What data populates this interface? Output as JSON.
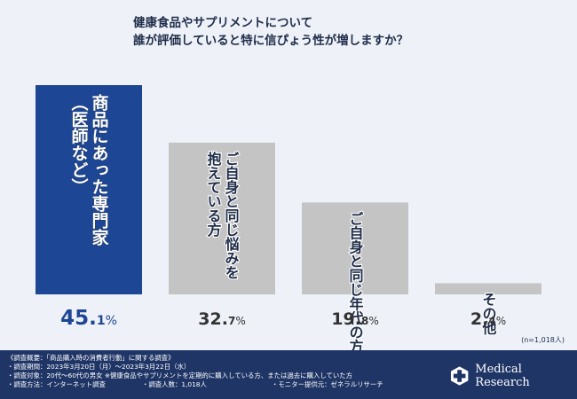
{
  "title_lines": [
    "健康食品やサプリメントについて",
    "誰が評価していると特に信ぴょう性が増しますか？"
  ],
  "colors": {
    "highlight": "#1d4694",
    "bar": "#c4c4c4",
    "footer": "#1f3566",
    "background": "#eef2f8"
  },
  "chart_data": {
    "type": "bar",
    "categories": [
      "商品にあった専門家（医師など）",
      "ご自身と同じ悩みを抱えている方",
      "ご自身と同じ年代の方",
      "その他"
    ],
    "bar_labels": [
      [
        "商品にあった専門家",
        "（医師など）"
      ],
      [
        "ご自身と同じ悩みを",
        "抱えている方"
      ],
      [
        "ご自身と同じ年代の方"
      ],
      [
        "その他"
      ]
    ],
    "values": [
      45.1,
      32.7,
      19.8,
      2.4
    ],
    "value_labels": [
      {
        "main": "45.",
        "dec": "1",
        "unit": "%"
      },
      {
        "main": "32.",
        "dec": "7",
        "unit": "%"
      },
      {
        "main": "19.",
        "dec": "8",
        "unit": "%"
      },
      {
        "main": "2.",
        "dec": "4",
        "unit": "%"
      }
    ],
    "highlight_index": 0,
    "ylim": [
      0,
      50
    ],
    "grid": false,
    "legend": "none"
  },
  "sample_size": "(n=1,018人)",
  "footer": {
    "notes": [
      "《調査概要：「商品購入時の消費者行動」に関する調査》",
      "・調査期間：2023年3月20日（月）〜2023年3月22日（水）",
      "・調査対象：20代〜60代の男女 ※健康食品やサプリメントを定期的に購入している方、または過去に購入していた方",
      "・調査方法：インターネット調査",
      "・調査人数：1,018人",
      "・モニター提供元：ゼネラルリサーチ"
    ],
    "brand": "Medical Research",
    "brand_icon": "medical-cross-icon"
  }
}
